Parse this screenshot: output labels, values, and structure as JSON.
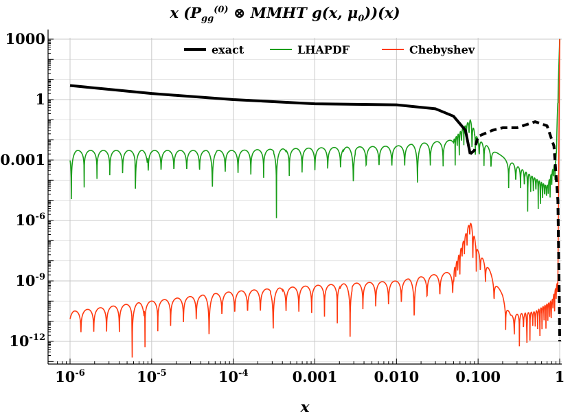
{
  "title": {
    "prefix": "x (P",
    "sup": "(0)",
    "sub": "gg",
    "middle": " ⊗ MMHT ",
    "suffix": "g(x, μ",
    "sub2": "0",
    "end": "))(x)"
  },
  "chart_data": {
    "type": "line",
    "xlabel": "x",
    "ylabel": "",
    "x_scale": "log",
    "y_scale": "log",
    "xlim": [
      1e-06,
      1
    ],
    "ylim": [
      1e-13,
      1000
    ],
    "grid": true,
    "legend_position": "top",
    "x_ticks": [
      {
        "value": 1e-06,
        "label": "10",
        "exp": "-6"
      },
      {
        "value": 1e-05,
        "label": "10",
        "exp": "-5"
      },
      {
        "value": 0.0001,
        "label": "10",
        "exp": "-4"
      },
      {
        "value": 0.001,
        "label": "0.001",
        "exp": ""
      },
      {
        "value": 0.01,
        "label": "0.010",
        "exp": ""
      },
      {
        "value": 0.1,
        "label": "0.100",
        "exp": ""
      },
      {
        "value": 1,
        "label": "1",
        "exp": ""
      }
    ],
    "y_ticks": [
      {
        "value": 1000,
        "label": "1000",
        "exp": ""
      },
      {
        "value": 1,
        "label": "1",
        "exp": ""
      },
      {
        "value": 0.001,
        "label": "0.001",
        "exp": ""
      },
      {
        "value": 1e-06,
        "label": "10",
        "exp": "-6"
      },
      {
        "value": 1e-09,
        "label": "10",
        "exp": "-9"
      },
      {
        "value": 1e-12,
        "label": "10",
        "exp": "-12"
      }
    ],
    "series": [
      {
        "name": "exact",
        "color": "#000000",
        "style": "solid-then-dashed",
        "points": [
          [
            1e-06,
            5.0
          ],
          [
            1e-05,
            2.0
          ],
          [
            0.0001,
            1.0
          ],
          [
            0.001,
            0.62
          ],
          [
            0.01,
            0.55
          ],
          [
            0.03,
            0.35
          ],
          [
            0.05,
            0.15
          ],
          [
            0.07,
            0.03
          ],
          [
            0.08,
            0.002
          ],
          [
            0.09,
            0.003
          ],
          [
            0.1,
            0.015
          ],
          [
            0.15,
            0.03
          ],
          [
            0.2,
            0.04
          ],
          [
            0.3,
            0.04
          ],
          [
            0.5,
            0.08
          ],
          [
            0.7,
            0.05
          ],
          [
            0.85,
            0.005
          ],
          [
            0.95,
            1e-05
          ],
          [
            0.99,
            1e-10
          ],
          [
            1.0,
            1e-12
          ]
        ]
      },
      {
        "name": "LHAPDF",
        "color": "#1a9e1a",
        "style": "oscillating",
        "envelope": [
          [
            1e-06,
            0.003
          ],
          [
            1e-05,
            0.003
          ],
          [
            0.0001,
            0.003
          ],
          [
            0.001,
            0.004
          ],
          [
            0.01,
            0.005
          ],
          [
            0.05,
            0.01
          ],
          [
            0.08,
            0.1
          ],
          [
            0.1,
            0.01
          ],
          [
            0.3,
            0.0005
          ],
          [
            0.7,
            5e-05
          ],
          [
            0.9,
            0.001
          ],
          [
            1.0,
            1000
          ]
        ]
      },
      {
        "name": "Chebyshev",
        "color": "#ff3a10",
        "style": "oscillating",
        "envelope": [
          [
            1e-06,
            3e-11
          ],
          [
            1e-05,
            1e-10
          ],
          [
            0.0001,
            3e-10
          ],
          [
            0.001,
            6e-10
          ],
          [
            0.01,
            1e-09
          ],
          [
            0.05,
            3e-09
          ],
          [
            0.08,
            1e-06
          ],
          [
            0.1,
            3e-08
          ],
          [
            0.2,
            3e-10
          ],
          [
            0.25,
            2e-11
          ],
          [
            0.5,
            3e-11
          ],
          [
            0.8,
            1e-10
          ],
          [
            0.95,
            1e-09
          ],
          [
            1.0,
            1000
          ]
        ]
      }
    ]
  }
}
